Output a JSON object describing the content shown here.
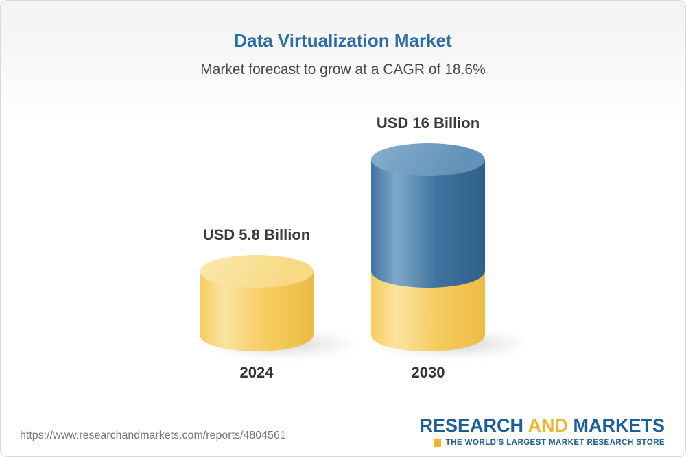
{
  "header": {
    "title": "Data Virtualization Market",
    "subtitle": "Market forecast to grow at a CAGR of 18.6%"
  },
  "chart_data": {
    "type": "bar",
    "title": "Data Virtualization Market",
    "subtitle": "Market forecast to grow at a CAGR of 18.6%",
    "cagr_pct": 18.6,
    "unit": "USD Billion",
    "categories": [
      "2024",
      "2030"
    ],
    "values": [
      5.8,
      16
    ],
    "legend": "none",
    "grid": false,
    "bars": [
      {
        "year": "2024",
        "value": 5.8,
        "value_label": "USD 5.8 Billion",
        "segments": [
          {
            "value": 5.8,
            "color": "yellow"
          }
        ]
      },
      {
        "year": "2030",
        "value": 16,
        "value_label": "USD 16 Billion",
        "segments": [
          {
            "value": 5.8,
            "color": "yellow"
          },
          {
            "value": 10.2,
            "color": "blue"
          }
        ]
      }
    ],
    "palette": {
      "yellow": {
        "light": "#FBE3A0",
        "base": "#F6CC60",
        "dark": "#ECBB45",
        "top": "#F8DA85",
        "topLight": "#FBE8AE"
      },
      "blue": {
        "light": "#7FA9CB",
        "base": "#3F739E",
        "dark": "#2F608A",
        "top": "#6392B8",
        "topLight": "#88AFCE"
      }
    }
  },
  "footer": {
    "url": "https://www.researchandmarkets.com/reports/4804561",
    "logo": {
      "research": "RESEARCH",
      "and": "AND",
      "markets": "MARKETS",
      "tagline": "THE WORLD'S LARGEST MARKET RESEARCH STORE",
      "brand_blue": "#1B5E98",
      "brand_gold": "#F2B32E"
    }
  }
}
